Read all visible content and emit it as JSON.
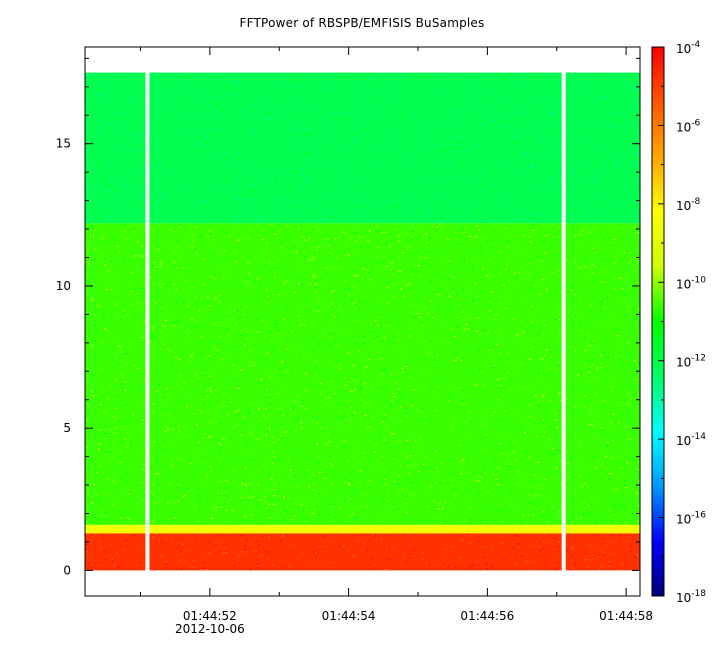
{
  "chart_data": {
    "type": "heatmap",
    "title": "FFTPower of RBSPB/EMFISIS  BuSamples",
    "xlabel": "",
    "ylabel": "",
    "date_label": "2012-10-06",
    "x": {
      "tick_labels": [
        "01:44:52",
        "01:44:54",
        "01:44:56",
        "01:44:58"
      ],
      "tick_values_s": [
        52,
        54,
        56,
        58
      ],
      "minor_tick_values_s": [
        51,
        53,
        55,
        57
      ],
      "range_s": [
        50.2,
        58.2
      ]
    },
    "y": {
      "tick_labels": [
        "0",
        "5",
        "10",
        "15"
      ],
      "tick_values": [
        0,
        5,
        10,
        15
      ],
      "range": [
        -0.9,
        18.4
      ],
      "data_top": 17.5
    },
    "colorbar": {
      "scale": "log",
      "range_exp": [
        -18,
        -4
      ],
      "tick_exponents": [
        -4,
        -6,
        -8,
        -10,
        -12,
        -14,
        -16,
        -18
      ],
      "base_label": "10",
      "colors": [
        "#00007a",
        "#0000ff",
        "#0099ff",
        "#00ffff",
        "#00ff66",
        "#00ff00",
        "#ccff00",
        "#ffff00",
        "#ffa500",
        "#ff5500",
        "#ff0000"
      ]
    },
    "bands": [
      {
        "y_range": [
          12.2,
          17.5
        ],
        "level_exp": -12.1,
        "description": "upper frequency band"
      },
      {
        "y_range": [
          1.6,
          12.2
        ],
        "level_exp": -10.6,
        "description": "middle frequency band"
      },
      {
        "y_range": [
          1.3,
          1.6
        ],
        "level_exp": -8.5,
        "description": "transition band"
      },
      {
        "y_range": [
          0.0,
          1.3
        ],
        "level_exp": -4.8,
        "description": "low frequency band"
      }
    ],
    "data_gaps_s": [
      51.1,
      57.1
    ]
  }
}
